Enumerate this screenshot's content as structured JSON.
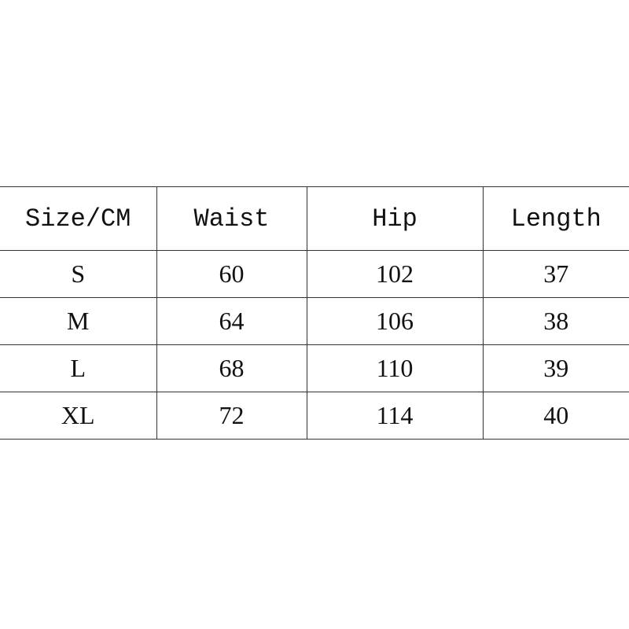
{
  "table": {
    "headers": [
      "Size/CM",
      "Waist",
      "Hip",
      "Length"
    ],
    "rows": [
      [
        "S",
        "60",
        "102",
        "37"
      ],
      [
        "M",
        "64",
        "106",
        "38"
      ],
      [
        "L",
        "68",
        "110",
        "39"
      ],
      [
        "XL",
        "72",
        "114",
        "40"
      ]
    ]
  }
}
